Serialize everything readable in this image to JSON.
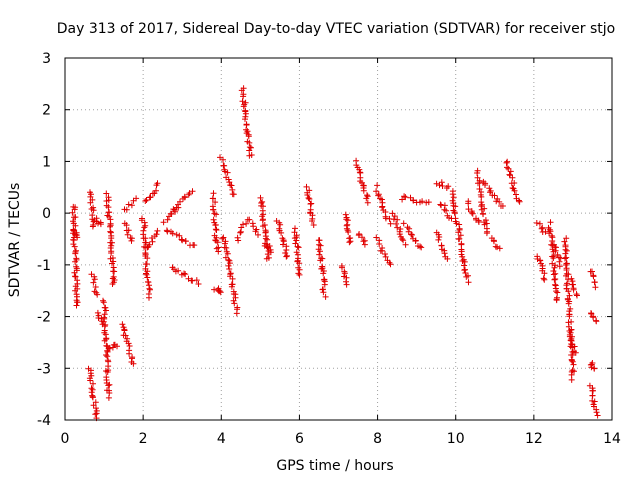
{
  "chart_data": {
    "type": "scatter",
    "title": "Day 313 of 2017, Sidereal Day-to-day VTEC variation (SDTVAR) for receiver stjo",
    "xlabel": "GPS time / hours",
    "ylabel": "SDTVAR / TECUs",
    "xlim": [
      0,
      14
    ],
    "ylim": [
      -4,
      3
    ],
    "xticks": [
      "0",
      "2",
      "4",
      "6",
      "8",
      "10",
      "12",
      "14"
    ],
    "yticks": [
      "-4",
      "-3",
      "-2",
      "-1",
      "0",
      "1",
      "2",
      "3"
    ],
    "grid": true,
    "marker": "+",
    "color": "#e00000",
    "series": [
      {
        "name": "SDTVAR",
        "segments": [
          [
            0.22,
            0.15,
            0.3,
            -1.8
          ],
          [
            0.24,
            -0.35,
            0.3,
            -0.45
          ],
          [
            0.62,
            -3.0,
            0.82,
            -3.95
          ],
          [
            0.66,
            0.4,
            0.72,
            -0.25
          ],
          [
            0.7,
            -1.2,
            0.8,
            -1.6
          ],
          [
            0.78,
            -0.1,
            0.92,
            -0.2
          ],
          [
            0.85,
            -1.95,
            0.95,
            -2.15
          ],
          [
            1.0,
            -1.7,
            1.12,
            -3.55
          ],
          [
            1.08,
            0.35,
            1.25,
            -1.4
          ],
          [
            1.15,
            -2.6,
            1.32,
            -2.55
          ],
          [
            1.45,
            -2.15,
            1.75,
            -2.9
          ],
          [
            1.5,
            0.05,
            1.8,
            0.25
          ],
          [
            1.55,
            -0.2,
            1.7,
            -0.55
          ],
          [
            2.0,
            -0.1,
            2.15,
            -1.6
          ],
          [
            2.05,
            0.2,
            2.4,
            0.55
          ],
          [
            2.1,
            -0.7,
            2.35,
            -0.35
          ],
          [
            2.55,
            -0.15,
            2.9,
            0.1
          ],
          [
            2.6,
            -0.3,
            3.3,
            -0.65
          ],
          [
            2.75,
            -1.05,
            3.4,
            -1.35
          ],
          [
            2.8,
            0.1,
            3.25,
            0.45
          ],
          [
            3.8,
            0.35,
            3.9,
            -0.75
          ],
          [
            3.85,
            -1.45,
            4.0,
            -1.55
          ],
          [
            4.0,
            1.05,
            4.3,
            0.35
          ],
          [
            4.05,
            -0.45,
            4.4,
            -1.9
          ],
          [
            4.4,
            -0.5,
            4.6,
            -0.2
          ],
          [
            4.55,
            2.4,
            4.75,
            1.1
          ],
          [
            4.7,
            -0.1,
            4.95,
            -0.4
          ],
          [
            5.0,
            0.3,
            5.2,
            -0.9
          ],
          [
            5.1,
            -0.55,
            5.3,
            -0.75
          ],
          [
            5.45,
            -0.15,
            5.7,
            -0.85
          ],
          [
            5.9,
            -0.3,
            6.0,
            -1.2
          ],
          [
            6.2,
            0.5,
            6.35,
            -0.2
          ],
          [
            6.5,
            -0.5,
            6.65,
            -1.6
          ],
          [
            7.1,
            -1.0,
            7.2,
            -1.4
          ],
          [
            7.2,
            0.0,
            7.3,
            -0.6
          ],
          [
            7.45,
            1.0,
            7.75,
            0.2
          ],
          [
            7.5,
            -0.4,
            7.7,
            -0.6
          ],
          [
            7.95,
            0.5,
            8.3,
            -0.2
          ],
          [
            8.0,
            -0.5,
            8.3,
            -1.0
          ],
          [
            8.4,
            0.0,
            8.7,
            -0.6
          ],
          [
            8.6,
            0.3,
            9.3,
            0.2
          ],
          [
            8.7,
            -0.2,
            9.1,
            -0.7
          ],
          [
            9.5,
            0.6,
            9.8,
            0.5
          ],
          [
            9.5,
            -0.4,
            9.8,
            -0.9
          ],
          [
            9.6,
            0.2,
            9.9,
            -0.1
          ],
          [
            9.9,
            0.4,
            10.3,
            -1.3
          ],
          [
            10.3,
            0.2,
            10.6,
            -0.2
          ],
          [
            10.55,
            0.8,
            10.8,
            -0.4
          ],
          [
            10.7,
            0.6,
            11.2,
            0.1
          ],
          [
            10.9,
            -0.5,
            11.1,
            -0.7
          ],
          [
            11.3,
            1.0,
            11.6,
            0.2
          ],
          [
            12.1,
            -0.2,
            12.3,
            -0.4
          ],
          [
            12.1,
            -0.8,
            12.3,
            -1.3
          ],
          [
            12.4,
            -0.2,
            12.6,
            -1.7
          ],
          [
            12.5,
            -0.6,
            12.7,
            -1.0
          ],
          [
            12.8,
            -0.5,
            13.0,
            -3.2
          ],
          [
            12.9,
            -1.2,
            13.1,
            -1.6
          ],
          [
            12.9,
            -2.3,
            13.05,
            -2.7
          ],
          [
            13.45,
            -1.1,
            13.6,
            -1.4
          ],
          [
            13.45,
            -1.9,
            13.6,
            -2.1
          ],
          [
            13.45,
            -2.9,
            13.55,
            -3.0
          ],
          [
            13.45,
            -3.3,
            13.6,
            -3.9
          ]
        ]
      }
    ]
  }
}
